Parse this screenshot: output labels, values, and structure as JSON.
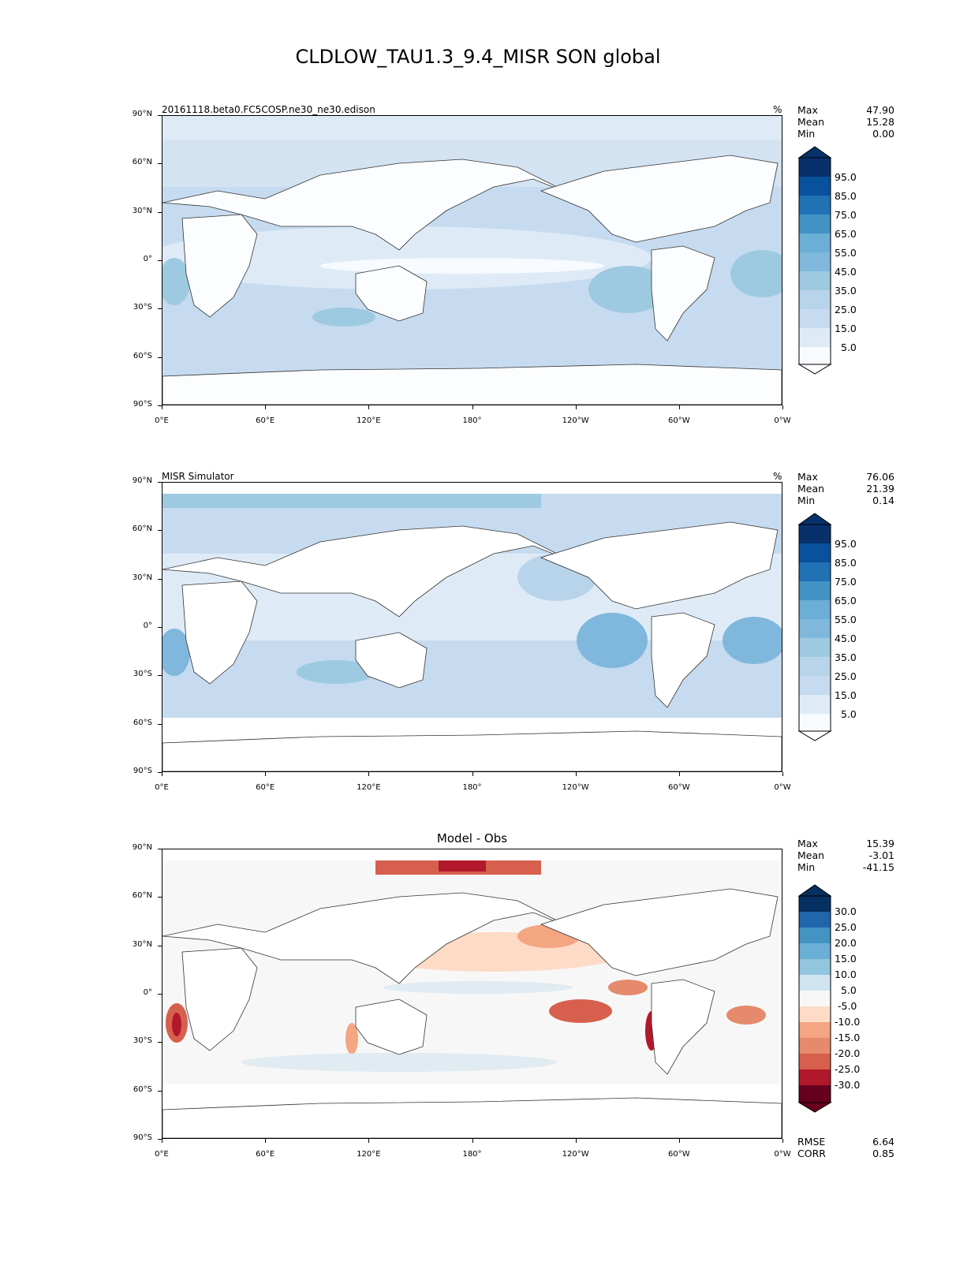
{
  "figure_title": "CLDLOW_TAU1.3_9.4_MISR SON global",
  "x_ticks": [
    "0°E",
    "60°E",
    "120°E",
    "180°",
    "120°W",
    "60°W",
    "0°W"
  ],
  "y_ticks": [
    "90°N",
    "60°N",
    "30°N",
    "0°",
    "30°S",
    "60°S",
    "90°S"
  ],
  "panels": [
    {
      "title": "20161118.beta0.FC5COSP.ne30_ne30.edison",
      "units": "%",
      "stats": {
        "max_label": "Max",
        "max": "47.90",
        "mean_label": "Mean",
        "mean": "15.28",
        "min_label": "Min",
        "min": "0.00"
      },
      "colorbar_labels": [
        "95.0",
        "85.0",
        "75.0",
        "65.0",
        "55.0",
        "45.0",
        "35.0",
        "25.0",
        "15.0",
        "5.0"
      ]
    },
    {
      "title": "MISR Simulator",
      "units": "%",
      "stats": {
        "max_label": "Max",
        "max": "76.06",
        "mean_label": "Mean",
        "mean": "21.39",
        "min_label": "Min",
        "min": "0.14"
      },
      "colorbar_labels": [
        "95.0",
        "85.0",
        "75.0",
        "65.0",
        "55.0",
        "45.0",
        "35.0",
        "25.0",
        "15.0",
        "5.0"
      ]
    },
    {
      "title": "Model - Obs",
      "units": "",
      "stats": {
        "max_label": "Max",
        "max": "15.39",
        "mean_label": "Mean",
        "mean": "-3.01",
        "min_label": "Min",
        "min": "-41.15"
      },
      "colorbar_labels": [
        "30.0",
        "25.0",
        "20.0",
        "15.0",
        "10.0",
        "5.0",
        "-5.0",
        "-10.0",
        "-15.0",
        "-20.0",
        "-25.0",
        "-30.0"
      ],
      "extra_stats": {
        "rmse_label": "RMSE",
        "rmse": "6.64",
        "corr_label": "CORR",
        "corr": "0.85"
      }
    }
  ],
  "chart_data": [
    {
      "type": "heatmap",
      "title": "20161118.beta0.FC5COSP.ne30_ne30.edison",
      "units": "%",
      "xlim": [
        0,
        360
      ],
      "ylim": [
        -90,
        90
      ],
      "levels": [
        0,
        5,
        15,
        25,
        35,
        45,
        55,
        65,
        75,
        85,
        95,
        100
      ],
      "colormap": [
        "#f7fbff",
        "#deebf7",
        "#c6dbef",
        "#b8d4ea",
        "#9ecae1",
        "#7fb8dc",
        "#6baed6",
        "#4292c6",
        "#2171b5",
        "#08519c",
        "#08306b"
      ],
      "stats": {
        "max": 47.9,
        "mean": 15.28,
        "min": 0.0
      }
    },
    {
      "type": "heatmap",
      "title": "MISR Simulator",
      "units": "%",
      "xlim": [
        0,
        360
      ],
      "ylim": [
        -90,
        90
      ],
      "levels": [
        0,
        5,
        15,
        25,
        35,
        45,
        55,
        65,
        75,
        85,
        95,
        100
      ],
      "colormap": [
        "#f7fbff",
        "#deebf7",
        "#c6dbef",
        "#b8d4ea",
        "#9ecae1",
        "#7fb8dc",
        "#6baed6",
        "#4292c6",
        "#2171b5",
        "#08519c",
        "#08306b"
      ],
      "stats": {
        "max": 76.06,
        "mean": 21.39,
        "min": 0.14
      }
    },
    {
      "type": "heatmap",
      "title": "Model - Obs",
      "xlim": [
        0,
        360
      ],
      "ylim": [
        -90,
        90
      ],
      "levels": [
        -35,
        -30,
        -25,
        -20,
        -15,
        -10,
        -5,
        5,
        10,
        15,
        20,
        25,
        30,
        35
      ],
      "colormap": [
        "#67001f",
        "#b2182b",
        "#d6604d",
        "#e58a6c",
        "#f4a582",
        "#fddbc7",
        "#f7f7f7",
        "#e1ebf2",
        "#d1e5f0",
        "#92c5de",
        "#4393c3",
        "#2166ac",
        "#053061"
      ],
      "stats": {
        "max": 15.39,
        "mean": -3.01,
        "min": -41.15,
        "rmse": 6.64,
        "corr": 0.85
      }
    }
  ]
}
